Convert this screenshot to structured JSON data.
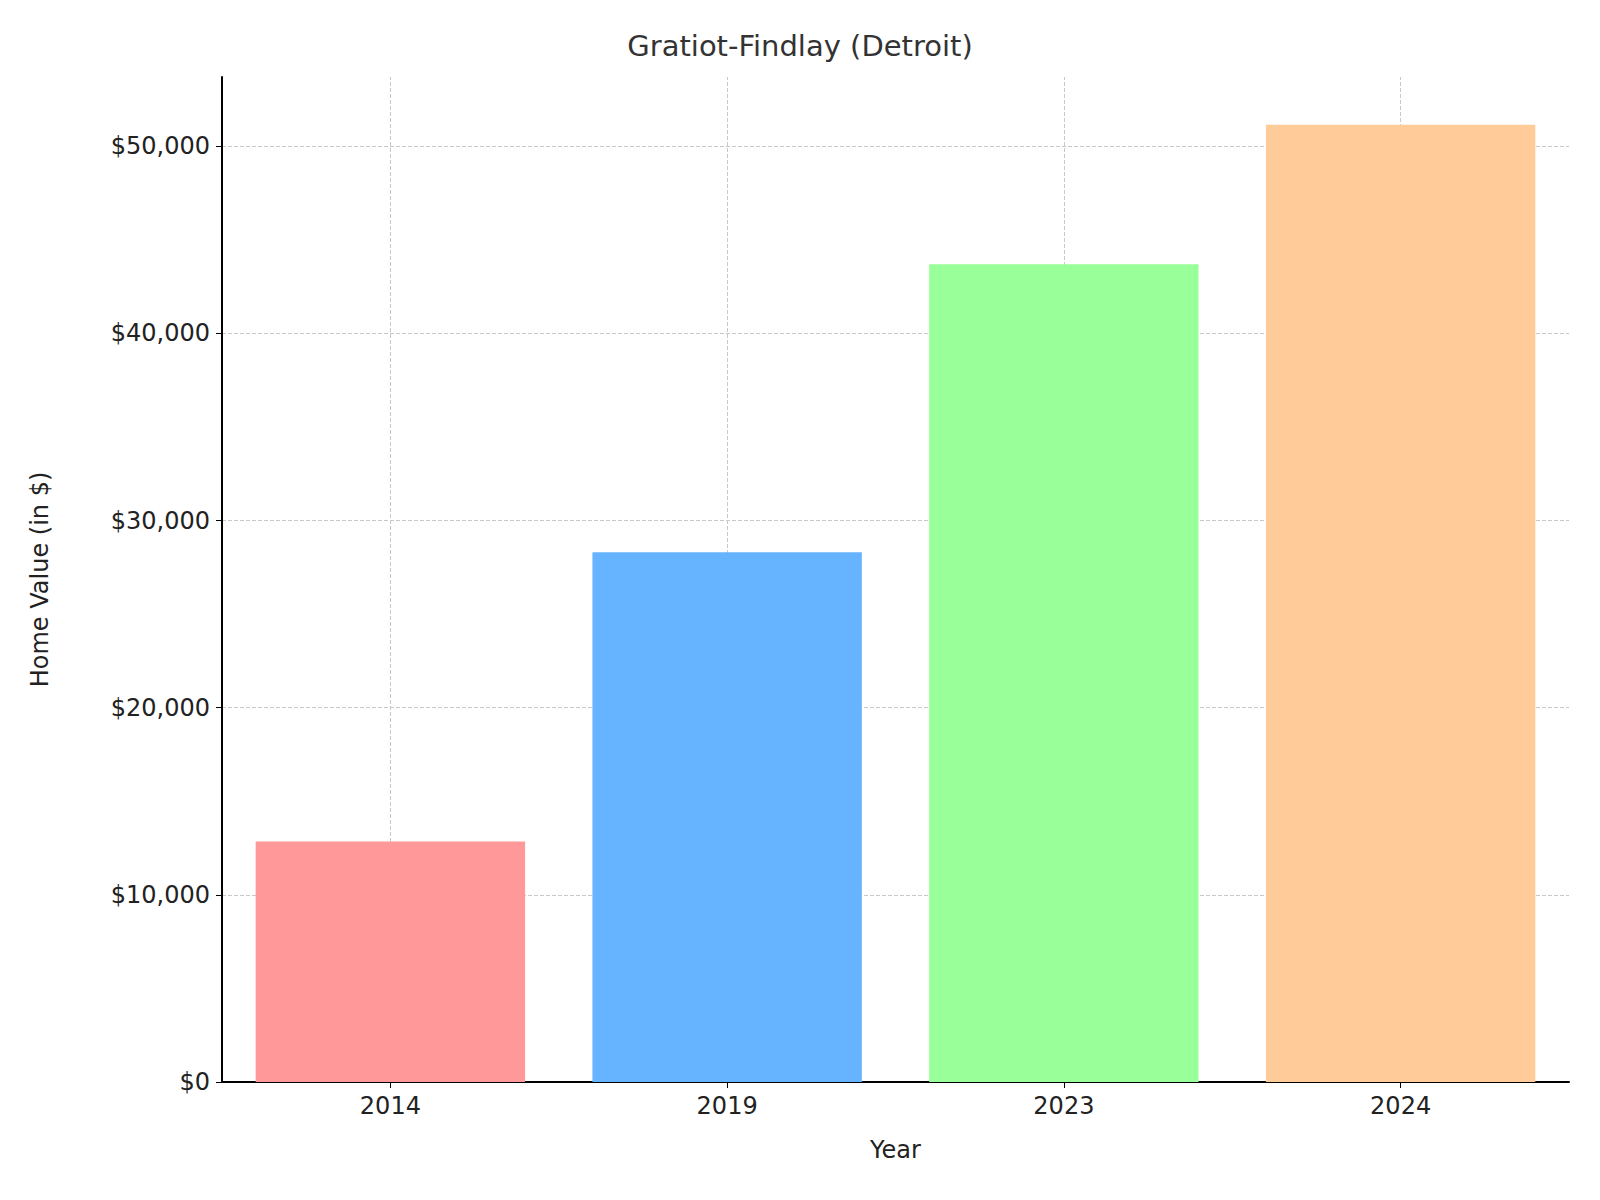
{
  "chart_data": {
    "type": "bar",
    "title": "Gratiot-Findlay (Detroit)",
    "x_label": "Year",
    "y_label": "Home Value (in $)",
    "categories": [
      "2014",
      "2019",
      "2023",
      "2024"
    ],
    "values": [
      12850,
      28300,
      43700,
      51150
    ],
    "colors": [
      "#ff9999",
      "#66b3ff",
      "#99ff99",
      "#ffcc99"
    ],
    "ylim": [
      0,
      53700
    ],
    "yticks": [
      {
        "value": 0,
        "label": "$0"
      },
      {
        "value": 10000,
        "label": "$10,000"
      },
      {
        "value": 20000,
        "label": "$20,000"
      },
      {
        "value": 30000,
        "label": "$30,000"
      },
      {
        "value": 40000,
        "label": "$40,000"
      },
      {
        "value": 50000,
        "label": "$50,000"
      }
    ],
    "grid": true
  }
}
